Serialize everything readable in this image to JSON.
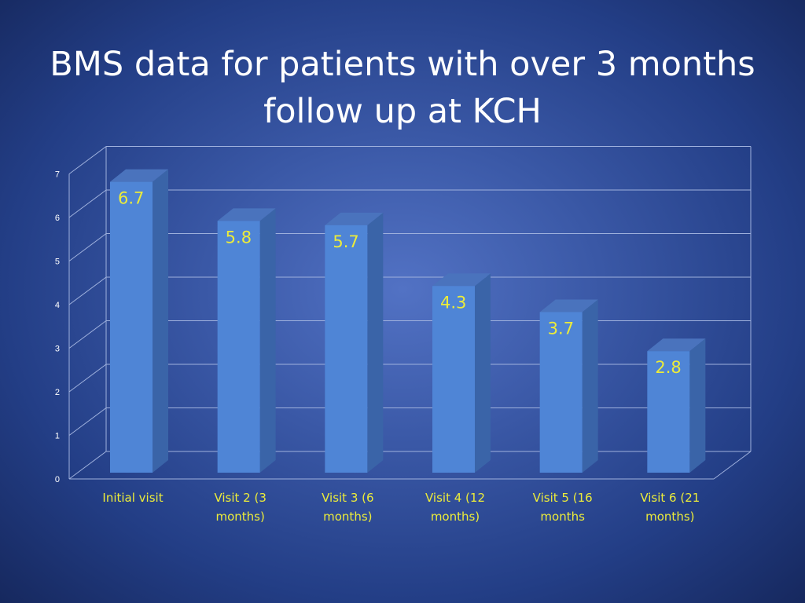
{
  "page": {
    "title_line1": "BMS data for patients with over 3 months",
    "title_line2": "follow up at KCH"
  },
  "colors": {
    "bar_front": "#4f85d6",
    "bar_side": "#3a64a8",
    "bar_top": "#4a73bd",
    "label": "#ecec3a",
    "grid": "#9fb1dd"
  },
  "chart_data": {
    "type": "bar",
    "title": "BMS data for patients with over 3 months follow up at KCH",
    "categories": [
      [
        "Initial visit"
      ],
      [
        "Visit 2 (3",
        "months)"
      ],
      [
        "Visit 3 (6",
        "months)"
      ],
      [
        "Visit 4 (12",
        "months)"
      ],
      [
        "Visit 5 (16",
        "months"
      ],
      [
        "Visit 6 (21",
        "months)"
      ]
    ],
    "values": [
      6.7,
      5.8,
      5.7,
      4.3,
      3.7,
      2.8
    ],
    "data_labels": [
      "6.7",
      "5.8",
      "5.7",
      "4.3",
      "3.7",
      "2.8"
    ],
    "ylim": [
      0,
      7
    ],
    "y_ticks": [
      "0",
      "1",
      "2",
      "3",
      "4",
      "5",
      "6",
      "7"
    ],
    "grid": true,
    "three_d": true
  }
}
